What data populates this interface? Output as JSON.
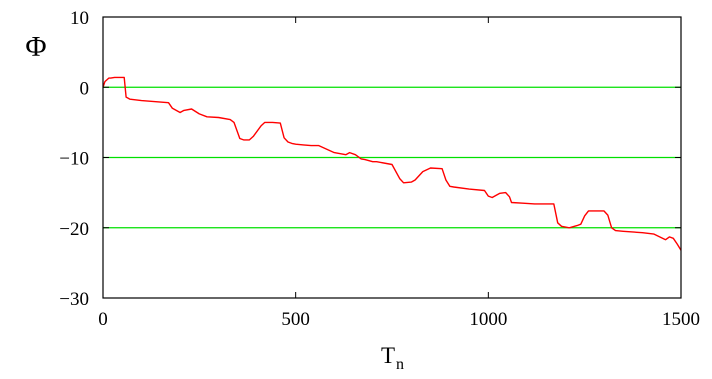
{
  "chart_data": {
    "type": "line",
    "title": "",
    "xlabel": "T",
    "xlabel_sub": "n",
    "ylabel": "Φ",
    "xlim": [
      0,
      1500
    ],
    "ylim": [
      -30,
      10
    ],
    "x_ticks": [
      0,
      500,
      1000,
      1500
    ],
    "y_ticks": [
      10,
      0,
      -10,
      -20,
      -30
    ],
    "x_tick_labels": [
      "0",
      "500",
      "1000",
      "1500"
    ],
    "y_tick_labels": [
      "10",
      "0",
      "−10",
      "−20",
      "−30"
    ],
    "reference_lines_y": [
      0,
      -10,
      -20
    ],
    "grid": false,
    "colors": {
      "series": "#ff0000",
      "reference": "#00e000",
      "frame": "#000000"
    },
    "series": [
      {
        "x": [
          0,
          5,
          15,
          20,
          30,
          55,
          60,
          70,
          100,
          170,
          180,
          200,
          210,
          230,
          250,
          270,
          300,
          330,
          340,
          355,
          365,
          380,
          390,
          410,
          420,
          440,
          460,
          470,
          480,
          490,
          500,
          520,
          540,
          560,
          600,
          630,
          640,
          655,
          670,
          680,
          700,
          710,
          750,
          770,
          780,
          800,
          810,
          830,
          850,
          880,
          890,
          900,
          910,
          950,
          990,
          1000,
          1010,
          1020,
          1030,
          1045,
          1055,
          1060,
          1090,
          1120,
          1170,
          1180,
          1190,
          1210,
          1230,
          1240,
          1250,
          1260,
          1300,
          1310,
          1320,
          1330,
          1350,
          1400,
          1430,
          1460,
          1470,
          1480,
          1490,
          1500
        ],
        "y": [
          0,
          0.8,
          1.3,
          1.3,
          1.4,
          1.4,
          -1.4,
          -1.7,
          -1.9,
          -2.2,
          -3.0,
          -3.6,
          -3.3,
          -3.1,
          -3.8,
          -4.2,
          -4.3,
          -4.6,
          -5.0,
          -7.3,
          -7.5,
          -7.5,
          -7.0,
          -5.5,
          -5.0,
          -5.0,
          -5.1,
          -7.2,
          -7.8,
          -8.0,
          -8.1,
          -8.2,
          -8.3,
          -8.3,
          -9.3,
          -9.6,
          -9.3,
          -9.6,
          -10.2,
          -10.3,
          -10.6,
          -10.6,
          -11.0,
          -13.0,
          -13.6,
          -13.5,
          -13.2,
          -12.0,
          -11.5,
          -11.6,
          -13.2,
          -14.1,
          -14.2,
          -14.5,
          -14.7,
          -15.5,
          -15.7,
          -15.4,
          -15.1,
          -15.0,
          -15.6,
          -16.4,
          -16.5,
          -16.6,
          -16.6,
          -19.3,
          -19.8,
          -20.0,
          -19.7,
          -19.5,
          -18.3,
          -17.6,
          -17.6,
          -18.2,
          -20.0,
          -20.4,
          -20.5,
          -20.7,
          -20.9,
          -21.7,
          -21.3,
          -21.5,
          -22.3,
          -23.2
        ]
      }
    ]
  }
}
